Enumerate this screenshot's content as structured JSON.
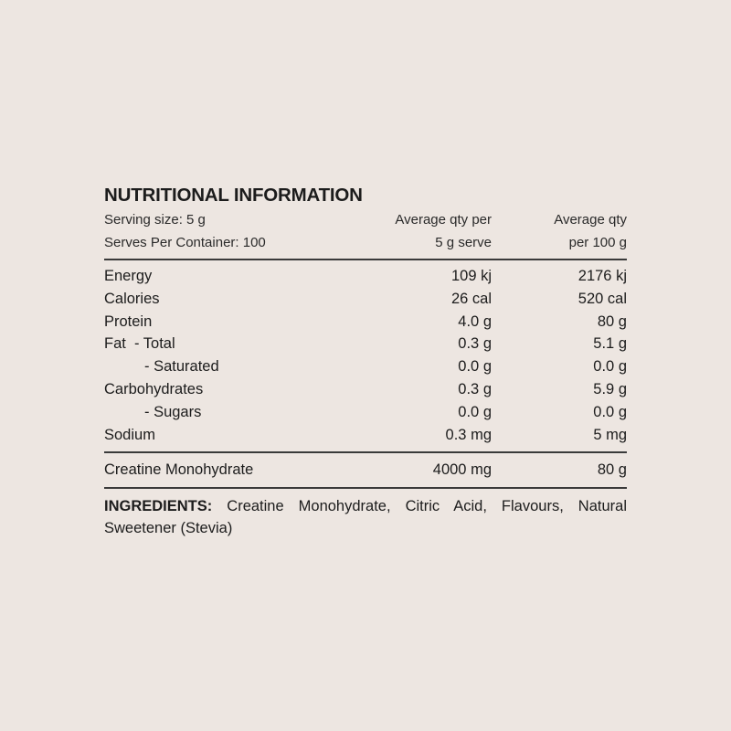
{
  "title": "NUTRITIONAL INFORMATION",
  "header": {
    "serving_size": "Serving size: 5 g",
    "serves_per_container": "Serves Per Container: 100",
    "col2_line1": "Average qty per",
    "col2_line2": "5 g serve",
    "col3_line1": "Average qty",
    "col3_line2": "per 100 g"
  },
  "rows": [
    {
      "label": "Energy",
      "per_serve": "109 kj",
      "per_100g": "2176 kj"
    },
    {
      "label": "Calories",
      "per_serve": "26 cal",
      "per_100g": "520 cal"
    },
    {
      "label": "Protein",
      "per_serve": "4.0 g",
      "per_100g": "80 g"
    },
    {
      "label": "Fat  - Total",
      "per_serve": "0.3 g",
      "per_100g": "5.1 g"
    },
    {
      "label": "- Saturated",
      "per_serve": "0.0 g",
      "per_100g": "0.0 g"
    },
    {
      "label": "Carbohydrates",
      "per_serve": "0.3 g",
      "per_100g": "5.9 g"
    },
    {
      "label": "- Sugars",
      "per_serve": "0.0 g",
      "per_100g": "0.0 g"
    },
    {
      "label": "Sodium",
      "per_serve": "0.3 mg",
      "per_100g": "5 mg"
    }
  ],
  "active": {
    "label": "Creatine Monohydrate",
    "per_serve": "4000 mg",
    "per_100g": "80 g"
  },
  "ingredients": {
    "label": "INGREDIENTS:",
    "text": "Creatine Monohydrate, Citric Acid, Flavours, Natural Sweetener (Stevia)"
  }
}
